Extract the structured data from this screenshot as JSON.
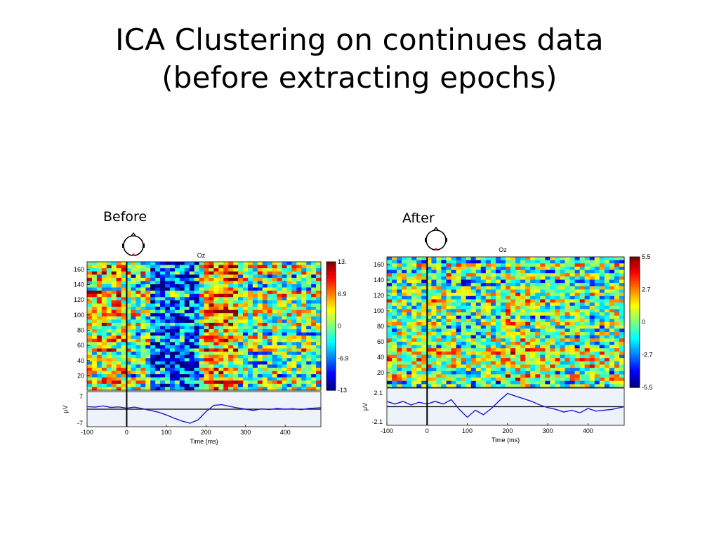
{
  "slide": {
    "title_line1": "ICA Clustering on continues data",
    "title_line2": "(before extracting epochs)"
  },
  "chart_data": [
    {
      "type": "heatmap",
      "panel_label": "Before",
      "channel_label": "Oz",
      "ytick_labels": [
        "20",
        "40",
        "60",
        "80",
        "100",
        "120",
        "140",
        "160"
      ],
      "yticks": [
        20,
        40,
        60,
        80,
        100,
        120,
        140,
        160
      ],
      "ylim": [
        1,
        170
      ],
      "xlim": [
        -100,
        490
      ],
      "xticks": [
        -100,
        0,
        100,
        200,
        300,
        400
      ],
      "xtick_labels": [
        "-100",
        "0",
        "100",
        "200",
        "300",
        "400"
      ],
      "xlabel": "Time (ms)",
      "colorbar_ticks": [
        "13.",
        "6.9",
        "0",
        "-6.9",
        "-13"
      ],
      "colorbar_range": [
        -13.8,
        13.8
      ],
      "erp": {
        "ylabel": "μV",
        "ylim": [
          -7,
          7
        ],
        "ytick_labels": [
          "7",
          "-7"
        ],
        "x": [
          -100,
          -80,
          -60,
          -40,
          -20,
          0,
          20,
          40,
          60,
          80,
          100,
          120,
          140,
          160,
          180,
          200,
          220,
          240,
          260,
          280,
          300,
          320,
          340,
          360,
          380,
          400,
          420,
          440,
          460,
          490
        ],
        "y": [
          1.0,
          0.8,
          1.3,
          0.7,
          0.9,
          0.4,
          0.8,
          0.2,
          -0.5,
          -1.2,
          -2.3,
          -3.6,
          -4.8,
          -5.6,
          -4.3,
          -1.0,
          1.5,
          1.8,
          1.1,
          0.5,
          0.0,
          -0.5,
          0.1,
          -0.1,
          0.3,
          0.0,
          0.2,
          -0.2,
          0.3,
          0.6
        ]
      }
    },
    {
      "type": "heatmap",
      "panel_label": "After",
      "channel_label": "Oz",
      "ytick_labels": [
        "20",
        "40",
        "60",
        "80",
        "100",
        "120",
        "140",
        "160"
      ],
      "yticks": [
        20,
        40,
        60,
        80,
        100,
        120,
        140,
        160
      ],
      "ylim": [
        1,
        170
      ],
      "xlim": [
        -100,
        490
      ],
      "xticks": [
        -100,
        0,
        100,
        200,
        300,
        400
      ],
      "xtick_labels": [
        "-100",
        "0",
        "100",
        "200",
        "300",
        "400"
      ],
      "xlabel": "Time (ms)",
      "colorbar_ticks": [
        "5.5",
        "2.7",
        "0",
        "-2.7",
        "-5.5"
      ],
      "colorbar_range": [
        -5.5,
        5.5
      ],
      "erp": {
        "ylabel": "μV",
        "ylim": [
          -2.1,
          2.1
        ],
        "ytick_labels": [
          "2.1",
          "-2.1"
        ],
        "x": [
          -100,
          -80,
          -60,
          -40,
          -20,
          0,
          20,
          40,
          60,
          80,
          100,
          120,
          140,
          160,
          180,
          200,
          220,
          240,
          260,
          280,
          300,
          320,
          340,
          360,
          380,
          400,
          420,
          440,
          460,
          490
        ],
        "y": [
          0.6,
          0.3,
          0.6,
          0.2,
          0.5,
          0.3,
          0.6,
          0.3,
          0.8,
          -0.3,
          -1.2,
          -0.4,
          -0.9,
          -0.2,
          0.7,
          1.5,
          1.2,
          0.9,
          0.6,
          0.2,
          -0.1,
          -0.3,
          -0.6,
          -0.4,
          -0.7,
          -0.2,
          -0.5,
          -0.4,
          -0.3,
          0.0
        ]
      }
    }
  ]
}
